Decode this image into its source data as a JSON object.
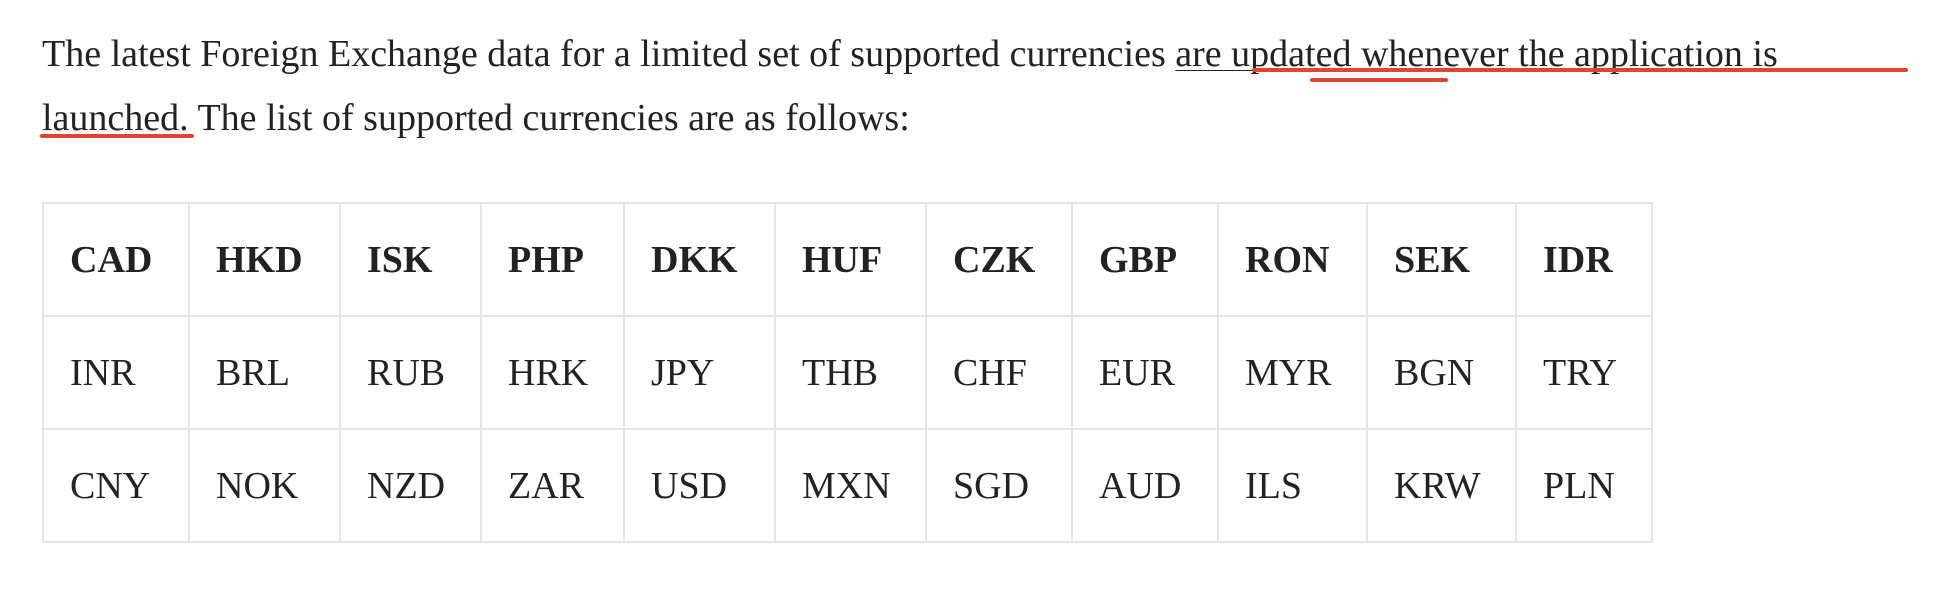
{
  "intro": {
    "text_before": "The latest Foreign Exchange data for a limited set of supported currencies ",
    "linked_text": "are updated whenever the application is launched",
    "text_after": ". The list of supported currencies are as follows:"
  },
  "annotation": {
    "color": "#e0462b"
  },
  "currency_table": {
    "header": [
      "CAD",
      "HKD",
      "ISK",
      "PHP",
      "DKK",
      "HUF",
      "CZK",
      "GBP",
      "RON",
      "SEK",
      "IDR"
    ],
    "rows": [
      [
        "INR",
        "BRL",
        "RUB",
        "HRK",
        "JPY",
        "THB",
        "CHF",
        "EUR",
        "MYR",
        "BGN",
        "TRY"
      ],
      [
        "CNY",
        "NOK",
        "NZD",
        "ZAR",
        "USD",
        "MXN",
        "SGD",
        "AUD",
        "ILS",
        "KRW",
        "PLN"
      ]
    ]
  }
}
